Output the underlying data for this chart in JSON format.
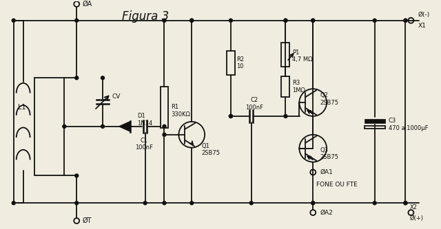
{
  "title": "Figura 3",
  "background_color": "#f0ece0",
  "line_color": "#111111",
  "fig_width": 6.4,
  "fig_height": 3.33,
  "components": {
    "L1_label": "L1",
    "CV_label": "CV",
    "D1_label": "D1\n1N34",
    "C1_label": "C1\n100nF",
    "R1_label": "R1\n330KΩ",
    "R2_label": "R2\n10",
    "C2_label": "C2\n100nF",
    "P1_label": "P1\n4,7 MΩ",
    "R3_label": "R3\n1MΩ",
    "Q1_label": "Q1\n2SB75",
    "Q2_label": "Q2\n2SB75",
    "Q3_label": "Q3\n2SB75",
    "C3_label": "C3\n470 a 1000μF",
    "X1_label": "X1",
    "X2_label": "X2",
    "A_label": "ØA",
    "T_label": "ØT",
    "A1_label": "ØA1",
    "A2_label": "ØA2",
    "neg_label": "Ø(-)",
    "pos_label": "Ø(+)",
    "fone_label": "FONE OU FTE"
  }
}
